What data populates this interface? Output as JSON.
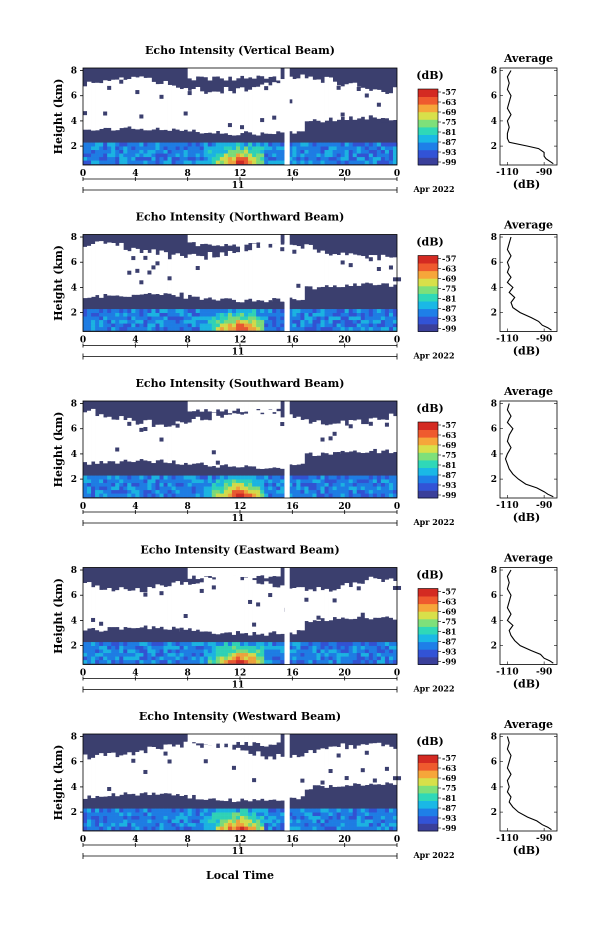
{
  "colors": {
    "background_echo": "#3b3f6e",
    "no_data": "#ffffff",
    "colormap": [
      "#3a3f9a",
      "#3253d6",
      "#1e7fe8",
      "#1ab8e6",
      "#2fd8b8",
      "#7ee07a",
      "#d8e04a",
      "#f6a63a",
      "#ef5a2e",
      "#d42a22"
    ]
  },
  "figure": {
    "xaxis_title": "Local Time",
    "date_label": "Apr 2022",
    "day_label": "11"
  },
  "chart_data": [
    {
      "type": "heatmap",
      "title": "Echo Intensity (Vertical Beam)",
      "ylabel": "Height (km)",
      "xlabel": "Local Time",
      "x_ticks": [
        "0",
        "4",
        "8",
        "12",
        "16",
        "20",
        "0"
      ],
      "xlim": [
        0,
        24
      ],
      "y_ticks": [
        "2",
        "4",
        "6",
        "8"
      ],
      "ylim": [
        0.5,
        8.2
      ],
      "colorbar": {
        "label": "(dB)",
        "ticks": [
          "-57",
          "-63",
          "-69",
          "-75",
          "-81",
          "-87",
          "-93",
          "-99"
        ]
      },
      "data_gap_hours": [
        15.4,
        15.8
      ],
      "average_profile": {
        "title": "Average",
        "xlabel": "(dB)",
        "x_ticks": [
          "-110",
          "-90"
        ],
        "xlim": [
          -114,
          -83
        ],
        "y_ticks": [
          "2",
          "4",
          "6",
          "8"
        ],
        "ylim": [
          0.5,
          8.2
        ],
        "height_km": [
          0.6,
          0.8,
          1.0,
          1.2,
          1.5,
          1.8,
          2.0,
          2.3,
          2.6,
          3.0,
          3.5,
          4.0,
          4.5,
          5.0,
          5.5,
          6.0,
          6.5,
          7.0,
          7.5,
          8.0
        ],
        "value_db": [
          -85,
          -87,
          -89,
          -90,
          -90,
          -93,
          -99,
          -109,
          -110,
          -110,
          -109,
          -110,
          -108,
          -110,
          -109,
          -108,
          -110,
          -109,
          -110,
          -108
        ]
      }
    },
    {
      "type": "heatmap",
      "title": "Echo Intensity (Northward Beam)",
      "ylabel": "Height (km)",
      "xlabel": "Local Time",
      "x_ticks": [
        "0",
        "4",
        "8",
        "12",
        "16",
        "20",
        "0"
      ],
      "xlim": [
        0,
        24
      ],
      "y_ticks": [
        "2",
        "4",
        "6",
        "8"
      ],
      "ylim": [
        0.5,
        8.2
      ],
      "colorbar": {
        "label": "(dB)",
        "ticks": [
          "-57",
          "-63",
          "-69",
          "-75",
          "-81",
          "-87",
          "-93",
          "-99"
        ]
      },
      "data_gap_hours": [
        15.4,
        15.8
      ],
      "average_profile": {
        "title": "Average",
        "xlabel": "(dB)",
        "x_ticks": [
          "-110",
          "-90"
        ],
        "xlim": [
          -114,
          -83
        ],
        "y_ticks": [
          "2",
          "4",
          "6",
          "8"
        ],
        "ylim": [
          0.5,
          8.2
        ],
        "height_km": [
          0.6,
          0.8,
          1.0,
          1.3,
          1.6,
          2.0,
          2.4,
          2.8,
          3.2,
          3.6,
          4.0,
          4.4,
          4.8,
          5.2,
          5.6,
          6.0,
          6.5,
          7.0,
          7.5,
          8.0
        ],
        "value_db": [
          -86,
          -88,
          -91,
          -93,
          -97,
          -103,
          -107,
          -108,
          -106,
          -109,
          -107,
          -110,
          -108,
          -110,
          -109,
          -110,
          -108,
          -110,
          -109,
          -108
        ]
      }
    },
    {
      "type": "heatmap",
      "title": "Echo Intensity (Southward Beam)",
      "ylabel": "Height (km)",
      "xlabel": "Local Time",
      "x_ticks": [
        "0",
        "4",
        "8",
        "12",
        "16",
        "20",
        "0"
      ],
      "xlim": [
        0,
        24
      ],
      "y_ticks": [
        "2",
        "4",
        "6",
        "8"
      ],
      "ylim": [
        0.5,
        8.2
      ],
      "colorbar": {
        "label": "(dB)",
        "ticks": [
          "-57",
          "-63",
          "-69",
          "-75",
          "-81",
          "-87",
          "-93",
          "-99"
        ]
      },
      "data_gap_hours": [
        15.4,
        15.8
      ],
      "average_profile": {
        "title": "Average",
        "xlabel": "(dB)",
        "x_ticks": [
          "-110",
          "-90"
        ],
        "xlim": [
          -114,
          -83
        ],
        "y_ticks": [
          "2",
          "4",
          "6",
          "8"
        ],
        "ylim": [
          0.5,
          8.2
        ],
        "height_km": [
          0.6,
          0.8,
          1.0,
          1.3,
          1.6,
          2.0,
          2.4,
          2.8,
          3.2,
          3.6,
          4.0,
          4.5,
          5.0,
          5.5,
          6.0,
          6.5,
          7.0,
          7.5,
          8.0
        ],
        "value_db": [
          -85,
          -88,
          -90,
          -94,
          -100,
          -104,
          -107,
          -109,
          -110,
          -111,
          -110,
          -108,
          -110,
          -109,
          -107,
          -110,
          -108,
          -110,
          -109
        ]
      }
    },
    {
      "type": "heatmap",
      "title": "Echo Intensity (Eastward Beam)",
      "ylabel": "Height (km)",
      "xlabel": "Local Time",
      "x_ticks": [
        "0",
        "4",
        "8",
        "12",
        "16",
        "20",
        "0"
      ],
      "xlim": [
        0,
        24
      ],
      "y_ticks": [
        "2",
        "4",
        "6",
        "8"
      ],
      "ylim": [
        0.5,
        8.2
      ],
      "colorbar": {
        "label": "(dB)",
        "ticks": [
          "-57",
          "-63",
          "-69",
          "-75",
          "-81",
          "-87",
          "-93",
          "-99"
        ]
      },
      "data_gap_hours": [
        15.4,
        15.8
      ],
      "average_profile": {
        "title": "Average",
        "xlabel": "(dB)",
        "x_ticks": [
          "-110",
          "-90"
        ],
        "xlim": [
          -114,
          -83
        ],
        "y_ticks": [
          "2",
          "4",
          "6",
          "8"
        ],
        "ylim": [
          0.5,
          8.2
        ],
        "height_km": [
          0.6,
          0.8,
          1.0,
          1.3,
          1.6,
          2.0,
          2.4,
          2.8,
          3.2,
          3.6,
          4.0,
          4.5,
          5.0,
          5.5,
          6.0,
          6.5,
          7.0,
          7.5,
          8.0
        ],
        "value_db": [
          -85,
          -87,
          -90,
          -92,
          -97,
          -103,
          -106,
          -108,
          -109,
          -107,
          -110,
          -108,
          -110,
          -109,
          -108,
          -110,
          -109,
          -110,
          -108
        ]
      }
    },
    {
      "type": "heatmap",
      "title": "Echo Intensity (Westward Beam)",
      "ylabel": "Height (km)",
      "xlabel": "Local Time",
      "x_ticks": [
        "0",
        "4",
        "8",
        "12",
        "16",
        "20",
        "0"
      ],
      "xlim": [
        0,
        24
      ],
      "y_ticks": [
        "2",
        "4",
        "6",
        "8"
      ],
      "ylim": [
        0.5,
        8.2
      ],
      "colorbar": {
        "label": "(dB)",
        "ticks": [
          "-57",
          "-63",
          "-69",
          "-75",
          "-81",
          "-87",
          "-93",
          "-99"
        ]
      },
      "data_gap_hours": [
        15.4,
        15.8
      ],
      "average_profile": {
        "title": "Average",
        "xlabel": "(dB)",
        "x_ticks": [
          "-110",
          "-90"
        ],
        "xlim": [
          -114,
          -83
        ],
        "y_ticks": [
          "2",
          "4",
          "6",
          "8"
        ],
        "ylim": [
          0.5,
          8.2
        ],
        "height_km": [
          0.6,
          0.8,
          1.0,
          1.3,
          1.6,
          2.0,
          2.4,
          2.8,
          3.2,
          3.6,
          4.0,
          4.5,
          5.0,
          5.5,
          6.0,
          6.5,
          7.0,
          7.5,
          8.0
        ],
        "value_db": [
          -86,
          -88,
          -91,
          -94,
          -99,
          -104,
          -107,
          -109,
          -108,
          -110,
          -109,
          -110,
          -108,
          -110,
          -109,
          -108,
          -110,
          -109,
          -110
        ]
      }
    }
  ]
}
